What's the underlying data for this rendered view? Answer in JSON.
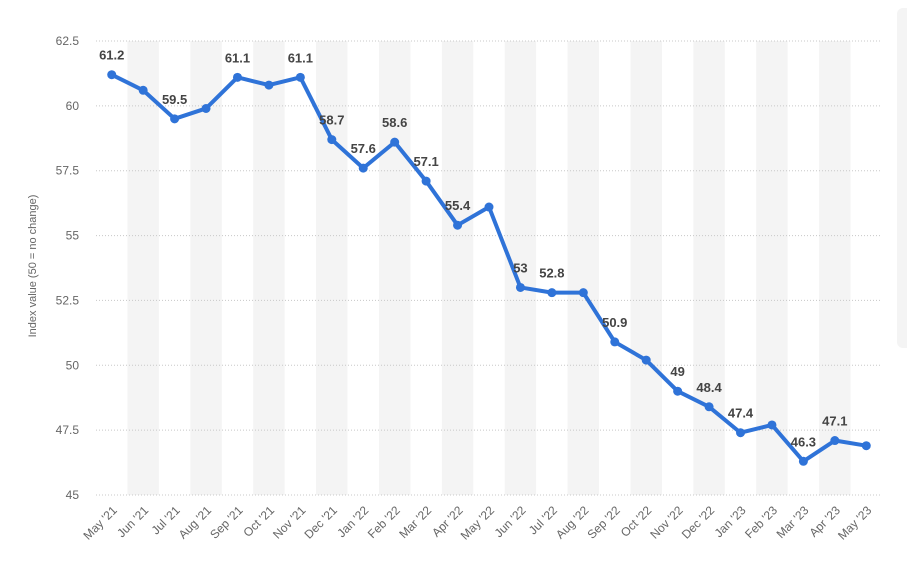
{
  "chart_data": {
    "type": "line",
    "title": "",
    "xlabel": "",
    "ylabel": "Index value (50 = no change)",
    "ylim": [
      45,
      62.5
    ],
    "yticks": [
      "45",
      "47.5",
      "50",
      "52.5",
      "55",
      "57.5",
      "60",
      "62.5"
    ],
    "grid": "horizontal dotted",
    "legend": "none",
    "categories": [
      "May '21",
      "Jun '21",
      "Jul '21",
      "Aug '21",
      "Sep '21",
      "Oct '21",
      "Nov '21",
      "Dec '21",
      "Jan '22",
      "Feb '22",
      "Mar '22",
      "Apr '22",
      "May '22",
      "Jun '22",
      "Jul '22",
      "Aug '22",
      "Sep '22",
      "Oct '22",
      "Nov '22",
      "Dec '22",
      "Jan '23",
      "Feb '23",
      "Mar '23",
      "Apr '23",
      "May '23"
    ],
    "values": [
      61.2,
      60.6,
      59.5,
      59.9,
      61.1,
      60.8,
      61.1,
      58.7,
      57.6,
      58.6,
      57.1,
      55.4,
      56.1,
      53,
      52.8,
      52.8,
      50.9,
      50.2,
      49,
      48.4,
      47.4,
      47.7,
      46.3,
      47.1,
      46.9
    ],
    "data_labels": [
      "61.2",
      "",
      "59.5",
      "",
      "61.1",
      "",
      "61.1",
      "58.7",
      "57.6",
      "58.6",
      "57.1",
      "55.4",
      "",
      "53",
      "52.8",
      "",
      "50.9",
      "",
      "49",
      "48.4",
      "47.4",
      "",
      "46.3",
      "47.1",
      ""
    ],
    "colors": {
      "line": "#2f73d8",
      "band": "#f4f4f4",
      "grid": "#c8c8c8"
    }
  }
}
